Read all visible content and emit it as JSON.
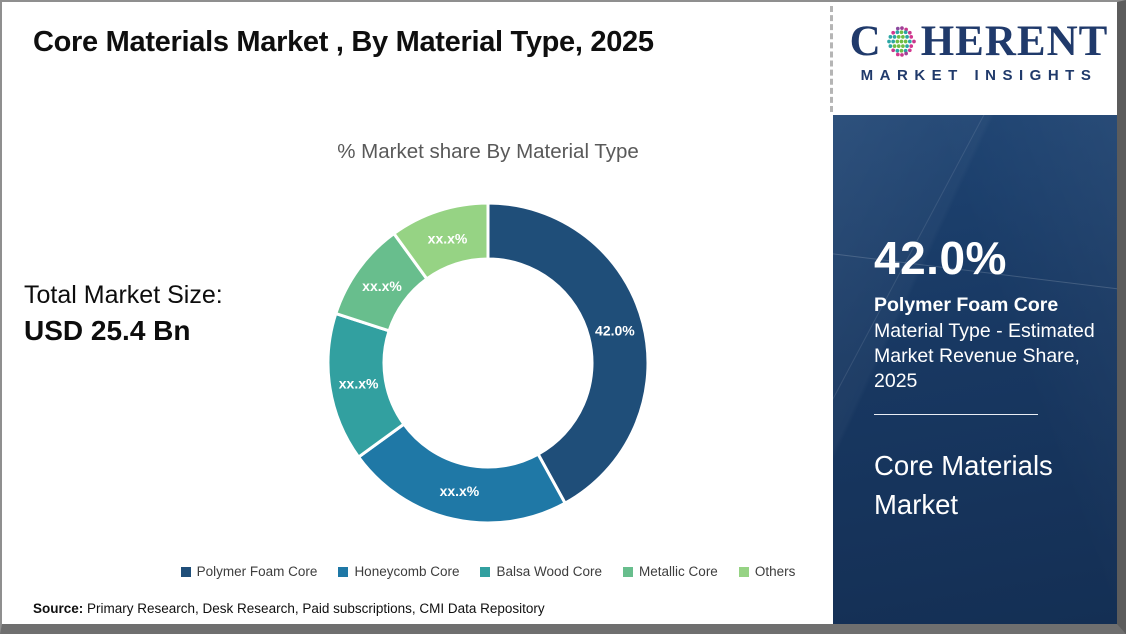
{
  "header": {
    "title": "Core Materials Market , By Material Type, 2025"
  },
  "brand": {
    "name_prefix": "C",
    "name_suffix": "HERENT",
    "subtitle": "MARKET INSIGHTS",
    "navy": "#203A6B"
  },
  "left_panel": {
    "total_label": "Total Market Size:",
    "total_value": "USD 25.4 Bn"
  },
  "chart_data": {
    "type": "pie",
    "donut": true,
    "title": "% Market share By Material Type",
    "legend_position": "bottom",
    "segments": [
      {
        "label": "Polymer Foam Core",
        "value": 42.0,
        "display": "42.0%",
        "color": "#1F4E79"
      },
      {
        "label": "Honeycomb Core",
        "value": 23.0,
        "display": "xx.x%",
        "color": "#1F78A6"
      },
      {
        "label": "Balsa Wood Core",
        "value": 15.0,
        "display": "xx.x%",
        "color": "#32A0A0"
      },
      {
        "label": "Metallic Core",
        "value": 10.0,
        "display": "xx.x%",
        "color": "#68BE8D"
      },
      {
        "label": "Others",
        "value": 10.0,
        "display": "xx.x%",
        "color": "#96D384"
      }
    ]
  },
  "sidebar": {
    "stat_value": "42.0%",
    "stat_title": "Polymer Foam Core",
    "stat_desc": "Material Type - Estimated Market Revenue Share, 2025",
    "market_name": "Core Materials Market"
  },
  "footer": {
    "source_label": "Source:",
    "source_text": " Primary Research, Desk Research, Paid subscriptions, CMI Data Repository"
  }
}
